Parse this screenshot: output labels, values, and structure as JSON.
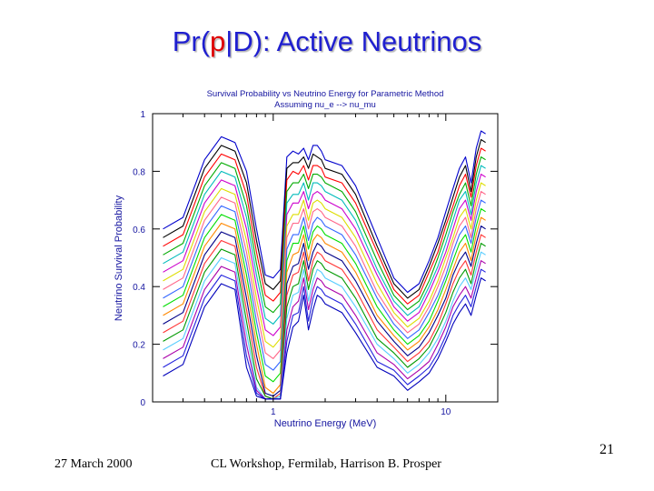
{
  "slide": {
    "title_pre": "Pr(",
    "title_red": "p",
    "title_post": "|D): Active Neutrinos",
    "footer_left": "27 March 2000",
    "footer_center": "CL Workshop, Fermilab, Harrison B. Prosper",
    "page_number": "21"
  },
  "chart_data": {
    "type": "line",
    "title": "Survival Probability vs Neutrino Energy for Parametric Method",
    "subtitle": "Assuming nu_e --> nu_mu",
    "xlabel": "Neutrino Energy (MeV)",
    "ylabel": "Neutrino Survival Probability",
    "x_scale": "log",
    "xlim": [
      0.2,
      20
    ],
    "ylim": [
      0,
      1
    ],
    "x_ticks": [
      {
        "value": 1,
        "label": "1"
      },
      {
        "value": 10,
        "label": "10"
      }
    ],
    "y_ticks": [
      {
        "value": 0,
        "label": "0"
      },
      {
        "value": 0.2,
        "label": "0.2"
      },
      {
        "value": 0.4,
        "label": "0.4"
      },
      {
        "value": 0.6,
        "label": "0.6"
      },
      {
        "value": 0.8,
        "label": "0.8"
      },
      {
        "value": 1,
        "label": "1"
      }
    ],
    "grid": false,
    "legend": "none",
    "x": [
      0.23,
      0.3,
      0.4,
      0.5,
      0.6,
      0.7,
      0.8,
      0.9,
      1.0,
      1.1,
      1.2,
      1.3,
      1.4,
      1.5,
      1.6,
      1.7,
      1.8,
      1.9,
      2.0,
      2.5,
      3,
      4,
      5,
      6,
      7,
      8,
      9,
      10,
      11,
      12,
      13,
      14,
      15,
      16,
      17
    ],
    "series": [
      {
        "color": "#0000cc",
        "values": [
          0.6,
          0.64,
          0.84,
          0.92,
          0.9,
          0.8,
          0.6,
          0.44,
          0.43,
          0.46,
          0.85,
          0.87,
          0.86,
          0.88,
          0.84,
          0.89,
          0.89,
          0.87,
          0.84,
          0.82,
          0.75,
          0.57,
          0.43,
          0.38,
          0.41,
          0.49,
          0.57,
          0.66,
          0.74,
          0.81,
          0.85,
          0.76,
          0.88,
          0.94,
          0.93
        ]
      },
      {
        "color": "#000000",
        "values": [
          0.57,
          0.61,
          0.81,
          0.89,
          0.87,
          0.76,
          0.56,
          0.41,
          0.39,
          0.42,
          0.81,
          0.83,
          0.83,
          0.85,
          0.81,
          0.86,
          0.85,
          0.84,
          0.81,
          0.79,
          0.72,
          0.54,
          0.41,
          0.36,
          0.39,
          0.47,
          0.55,
          0.63,
          0.71,
          0.78,
          0.82,
          0.73,
          0.85,
          0.91,
          0.9
        ]
      },
      {
        "color": "#ff0000",
        "values": [
          0.54,
          0.58,
          0.78,
          0.86,
          0.84,
          0.72,
          0.52,
          0.37,
          0.35,
          0.38,
          0.77,
          0.8,
          0.79,
          0.82,
          0.77,
          0.82,
          0.82,
          0.81,
          0.78,
          0.76,
          0.69,
          0.52,
          0.39,
          0.34,
          0.37,
          0.45,
          0.52,
          0.61,
          0.68,
          0.75,
          0.79,
          0.71,
          0.82,
          0.88,
          0.87
        ]
      },
      {
        "color": "#00aa00",
        "values": [
          0.51,
          0.55,
          0.75,
          0.83,
          0.81,
          0.68,
          0.48,
          0.33,
          0.31,
          0.34,
          0.73,
          0.76,
          0.76,
          0.79,
          0.74,
          0.79,
          0.79,
          0.78,
          0.76,
          0.73,
          0.66,
          0.49,
          0.37,
          0.32,
          0.35,
          0.42,
          0.5,
          0.58,
          0.66,
          0.72,
          0.76,
          0.68,
          0.79,
          0.85,
          0.84
        ]
      },
      {
        "color": "#00bbbb",
        "values": [
          0.48,
          0.52,
          0.72,
          0.8,
          0.78,
          0.64,
          0.44,
          0.29,
          0.27,
          0.3,
          0.69,
          0.72,
          0.72,
          0.76,
          0.7,
          0.76,
          0.76,
          0.75,
          0.73,
          0.7,
          0.63,
          0.46,
          0.35,
          0.3,
          0.33,
          0.4,
          0.47,
          0.55,
          0.63,
          0.7,
          0.73,
          0.65,
          0.76,
          0.82,
          0.81
        ]
      },
      {
        "color": "#cc00cc",
        "values": [
          0.45,
          0.49,
          0.69,
          0.77,
          0.75,
          0.6,
          0.4,
          0.25,
          0.23,
          0.26,
          0.65,
          0.69,
          0.69,
          0.73,
          0.67,
          0.72,
          0.73,
          0.72,
          0.7,
          0.67,
          0.6,
          0.44,
          0.33,
          0.28,
          0.31,
          0.38,
          0.45,
          0.52,
          0.6,
          0.67,
          0.7,
          0.63,
          0.73,
          0.79,
          0.78
        ]
      },
      {
        "color": "#dddd00",
        "values": [
          0.42,
          0.46,
          0.66,
          0.74,
          0.72,
          0.56,
          0.36,
          0.21,
          0.19,
          0.22,
          0.61,
          0.65,
          0.65,
          0.7,
          0.63,
          0.69,
          0.7,
          0.69,
          0.67,
          0.64,
          0.57,
          0.41,
          0.31,
          0.26,
          0.29,
          0.35,
          0.42,
          0.5,
          0.57,
          0.64,
          0.67,
          0.6,
          0.7,
          0.76,
          0.75
        ]
      },
      {
        "color": "#ff6688",
        "values": [
          0.39,
          0.43,
          0.63,
          0.71,
          0.69,
          0.52,
          0.32,
          0.17,
          0.15,
          0.18,
          0.57,
          0.62,
          0.62,
          0.67,
          0.6,
          0.66,
          0.67,
          0.66,
          0.64,
          0.61,
          0.54,
          0.38,
          0.29,
          0.24,
          0.27,
          0.33,
          0.4,
          0.47,
          0.55,
          0.61,
          0.64,
          0.57,
          0.67,
          0.73,
          0.72
        ]
      },
      {
        "color": "#3366ff",
        "values": [
          0.36,
          0.4,
          0.6,
          0.68,
          0.66,
          0.48,
          0.28,
          0.13,
          0.11,
          0.14,
          0.53,
          0.58,
          0.58,
          0.64,
          0.56,
          0.62,
          0.64,
          0.63,
          0.61,
          0.58,
          0.51,
          0.36,
          0.27,
          0.22,
          0.25,
          0.31,
          0.37,
          0.44,
          0.52,
          0.58,
          0.61,
          0.55,
          0.64,
          0.7,
          0.69
        ]
      },
      {
        "color": "#00dd00",
        "values": [
          0.33,
          0.37,
          0.57,
          0.65,
          0.63,
          0.44,
          0.24,
          0.09,
          0.07,
          0.1,
          0.49,
          0.55,
          0.55,
          0.61,
          0.53,
          0.59,
          0.61,
          0.6,
          0.58,
          0.55,
          0.48,
          0.33,
          0.25,
          0.2,
          0.23,
          0.28,
          0.35,
          0.42,
          0.49,
          0.55,
          0.58,
          0.52,
          0.61,
          0.67,
          0.66
        ]
      },
      {
        "color": "#ff8800",
        "values": [
          0.3,
          0.34,
          0.54,
          0.62,
          0.6,
          0.4,
          0.2,
          0.05,
          0.03,
          0.06,
          0.45,
          0.51,
          0.52,
          0.58,
          0.49,
          0.56,
          0.58,
          0.57,
          0.55,
          0.52,
          0.45,
          0.3,
          0.23,
          0.18,
          0.21,
          0.26,
          0.32,
          0.39,
          0.46,
          0.52,
          0.55,
          0.49,
          0.58,
          0.64,
          0.63
        ]
      },
      {
        "color": "#000088",
        "values": [
          0.27,
          0.31,
          0.51,
          0.59,
          0.57,
          0.36,
          0.16,
          0.03,
          0.02,
          0.04,
          0.41,
          0.47,
          0.48,
          0.55,
          0.46,
          0.52,
          0.55,
          0.54,
          0.52,
          0.49,
          0.42,
          0.28,
          0.21,
          0.16,
          0.19,
          0.24,
          0.3,
          0.36,
          0.44,
          0.49,
          0.52,
          0.47,
          0.55,
          0.61,
          0.6
        ]
      },
      {
        "color": "#ff3333",
        "values": [
          0.24,
          0.28,
          0.48,
          0.56,
          0.54,
          0.32,
          0.12,
          0.02,
          0.01,
          0.03,
          0.37,
          0.44,
          0.45,
          0.52,
          0.42,
          0.49,
          0.52,
          0.51,
          0.49,
          0.46,
          0.39,
          0.25,
          0.19,
          0.14,
          0.17,
          0.21,
          0.27,
          0.34,
          0.41,
          0.46,
          0.49,
          0.44,
          0.52,
          0.58,
          0.57
        ]
      },
      {
        "color": "#009900",
        "values": [
          0.21,
          0.25,
          0.45,
          0.53,
          0.51,
          0.28,
          0.08,
          0.02,
          0.01,
          0.02,
          0.33,
          0.4,
          0.41,
          0.49,
          0.39,
          0.46,
          0.49,
          0.48,
          0.46,
          0.43,
          0.36,
          0.22,
          0.17,
          0.12,
          0.15,
          0.19,
          0.25,
          0.31,
          0.38,
          0.43,
          0.46,
          0.41,
          0.49,
          0.55,
          0.54
        ]
      },
      {
        "color": "#55ccff",
        "values": [
          0.18,
          0.22,
          0.42,
          0.5,
          0.48,
          0.24,
          0.05,
          0.01,
          0.01,
          0.02,
          0.29,
          0.37,
          0.38,
          0.46,
          0.35,
          0.42,
          0.46,
          0.45,
          0.43,
          0.4,
          0.33,
          0.2,
          0.15,
          0.1,
          0.13,
          0.17,
          0.22,
          0.28,
          0.35,
          0.4,
          0.43,
          0.39,
          0.46,
          0.52,
          0.51
        ]
      },
      {
        "color": "#aa00aa",
        "values": [
          0.15,
          0.19,
          0.39,
          0.47,
          0.45,
          0.2,
          0.04,
          0.01,
          0.01,
          0.01,
          0.25,
          0.33,
          0.35,
          0.43,
          0.32,
          0.39,
          0.43,
          0.42,
          0.4,
          0.37,
          0.3,
          0.17,
          0.13,
          0.08,
          0.11,
          0.14,
          0.2,
          0.26,
          0.33,
          0.37,
          0.4,
          0.36,
          0.43,
          0.49,
          0.48
        ]
      },
      {
        "color": "#2222dd",
        "values": [
          0.12,
          0.16,
          0.36,
          0.44,
          0.42,
          0.16,
          0.03,
          0.01,
          0.01,
          0.01,
          0.21,
          0.3,
          0.31,
          0.4,
          0.28,
          0.36,
          0.4,
          0.39,
          0.37,
          0.34,
          0.27,
          0.14,
          0.11,
          0.06,
          0.09,
          0.12,
          0.17,
          0.23,
          0.3,
          0.34,
          0.37,
          0.33,
          0.4,
          0.46,
          0.45
        ]
      },
      {
        "color": "#0000bb",
        "values": [
          0.09,
          0.13,
          0.33,
          0.41,
          0.39,
          0.12,
          0.02,
          0.01,
          0.01,
          0.01,
          0.17,
          0.26,
          0.28,
          0.37,
          0.25,
          0.32,
          0.37,
          0.36,
          0.34,
          0.31,
          0.24,
          0.12,
          0.09,
          0.04,
          0.07,
          0.1,
          0.15,
          0.21,
          0.27,
          0.31,
          0.34,
          0.3,
          0.37,
          0.43,
          0.42
        ]
      }
    ]
  }
}
